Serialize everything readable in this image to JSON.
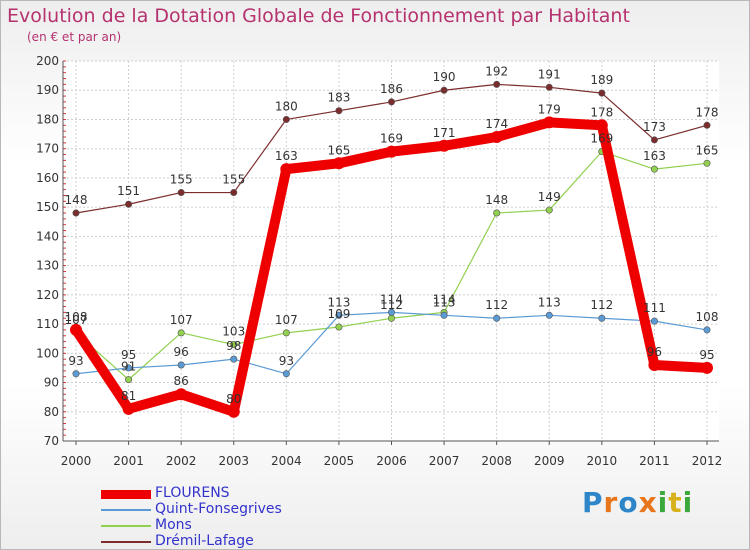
{
  "header": {
    "title": "Evolution de la Dotation Globale de Fonctionnement par Habitant",
    "subtitle": "(en € et par an)"
  },
  "logo": {
    "text": "Proxiti",
    "colors": [
      "#2e86c8",
      "#e8761d",
      "#3aa83a",
      "#d8b21c"
    ]
  },
  "chart_data": {
    "type": "line",
    "title": "Evolution de la Dotation Globale de Fonctionnement par Habitant",
    "xlabel": "",
    "ylabel": "",
    "ylim": [
      70,
      200
    ],
    "yticks": [
      70,
      80,
      90,
      100,
      110,
      120,
      130,
      140,
      150,
      160,
      170,
      180,
      190,
      200
    ],
    "grid": true,
    "legend_position": "bottom-left",
    "x": [
      "2000",
      "2001",
      "2002",
      "2003",
      "2004",
      "2005",
      "2006",
      "2007",
      "2008",
      "2009",
      "2010",
      "2011",
      "2012"
    ],
    "series": [
      {
        "name": "FLOURENS",
        "color": "#ee0000",
        "values": [
          108,
          81,
          86,
          80,
          163,
          165,
          169,
          171,
          174,
          179,
          178,
          96,
          95
        ],
        "labels": [
          "108",
          "81",
          "86",
          "80",
          "163",
          "165",
          "169",
          "171",
          "174",
          "179",
          "178",
          "96",
          "95"
        ]
      },
      {
        "name": "Quint-Fonsegrives",
        "color": "#5b9bd5",
        "values": [
          93,
          95,
          96,
          98,
          93,
          113,
          114,
          113,
          112,
          113,
          112,
          111,
          108
        ],
        "labels": [
          "93",
          "95",
          "96",
          "98",
          "93",
          "113",
          "114",
          "113",
          "112",
          "113",
          "112",
          "111",
          "108"
        ]
      },
      {
        "name": "Mons",
        "color": "#92d050",
        "values": [
          107,
          91,
          107,
          103,
          107,
          109,
          112,
          114,
          148,
          149,
          169,
          163,
          165
        ],
        "labels": [
          "107",
          "91",
          "107",
          "103",
          "107",
          "109",
          "112",
          "114",
          "148",
          "149",
          "169",
          "163",
          "165"
        ]
      },
      {
        "name": "Drémil-Lafage",
        "color": "#7b2c2c",
        "values": [
          148,
          151,
          155,
          155,
          180,
          183,
          186,
          190,
          192,
          191,
          189,
          173,
          178
        ],
        "labels": [
          "148",
          "151",
          "155",
          "155",
          "180",
          "183",
          "186",
          "190",
          "192",
          "191",
          "189",
          "173",
          "178"
        ]
      }
    ]
  }
}
